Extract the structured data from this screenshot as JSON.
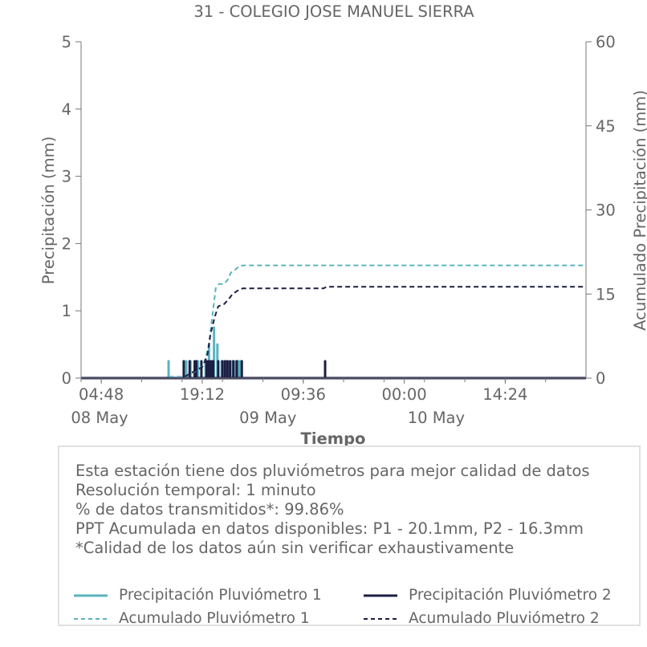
{
  "chart_data": {
    "type": "line",
    "title": "31 - COLEGIO JOSE MANUEL SIERRA",
    "xlabel": "Tiempo",
    "ylabel": "Precipitación (mm)",
    "y2label": "Acumulado Precipitación (mm)",
    "ylim": [
      0,
      5
    ],
    "y2lim": [
      0,
      60
    ],
    "yticks": [
      "0",
      "1",
      "2",
      "3",
      "4",
      "5"
    ],
    "y2ticks": [
      "0",
      "15",
      "30",
      "45",
      "60"
    ],
    "xlim_hours": [
      0,
      60
    ],
    "xticks": [
      {
        "hour": 0,
        "label": ""
      },
      {
        "hour": 2.4,
        "label": "04:48"
      },
      {
        "hour": 7.2,
        "label": ""
      },
      {
        "hour": 12,
        "label": ""
      },
      {
        "hour": 16.8,
        "label": ""
      },
      {
        "hour": 21.6,
        "label": ""
      },
      {
        "hour": 26.4,
        "label": ""
      },
      {
        "hour": 31.2,
        "label": ""
      },
      {
        "hour": 36,
        "label": ""
      },
      {
        "hour": 40.8,
        "label": ""
      },
      {
        "hour": 45.6,
        "label": ""
      },
      {
        "hour": 50.4,
        "label": ""
      },
      {
        "hour": 55.2,
        "label": ""
      }
    ],
    "xtick_labels": [
      {
        "hour": 2.4,
        "label": "04:48"
      },
      {
        "hour": 14.4,
        "label": "19:12"
      },
      {
        "hour": 26.4,
        "label": "09:36"
      },
      {
        "hour": 38.4,
        "label": "00:00"
      },
      {
        "hour": 50.4,
        "label": "14:24"
      }
    ],
    "date_labels": [
      {
        "hour": 2.2,
        "label": "08 May"
      },
      {
        "hour": 22.2,
        "label": "09 May"
      },
      {
        "hour": 42.2,
        "label": "10 May"
      }
    ],
    "series": [
      {
        "name": "Precipitación Pluviómetro 1",
        "axis": "left",
        "color": "#5ab4be",
        "style": "solid",
        "x": [
          10.4,
          12.5,
          13.0,
          13.9,
          14.8,
          15.2,
          15.8,
          16.2,
          16.7,
          17.3,
          18.0,
          18.4,
          18.7,
          18.9
        ],
        "values": [
          0.25,
          0.25,
          0.25,
          0.25,
          0.25,
          0.5,
          0.75,
          0.5,
          0.25,
          0.25,
          0.25,
          0.25,
          0.25,
          0.25
        ]
      },
      {
        "name": "Precipitación Pluviómetro 2",
        "axis": "left",
        "color": "#1c1e44",
        "style": "solid",
        "x": [
          12.2,
          12.9,
          13.5,
          13.7,
          14.3,
          14.9,
          15.1,
          15.3,
          15.5,
          15.7,
          16.3,
          16.8,
          17.1,
          17.4,
          17.7,
          18.1,
          18.5,
          19.1,
          29.0
        ],
        "values": [
          0.25,
          0.25,
          0.25,
          0.25,
          0.25,
          0.25,
          0.25,
          0.25,
          0.25,
          0.25,
          0.25,
          0.25,
          0.25,
          0.25,
          0.25,
          0.25,
          0.25,
          0.25,
          0.25
        ]
      },
      {
        "name": "Acumulado Pluviómetro 1",
        "axis": "right",
        "color": "#5ab4be",
        "style": "dashed",
        "x": [
          0,
          10.3,
          10.5,
          12.4,
          13.0,
          14.0,
          14.6,
          15.2,
          15.6,
          16.0,
          16.4,
          17.0,
          17.4,
          17.8,
          18.3,
          18.8,
          19.4,
          60
        ],
        "values": [
          0,
          0,
          0.25,
          0.25,
          0.8,
          1.5,
          2.5,
          6.0,
          11.0,
          16.0,
          16.8,
          16.8,
          17.5,
          18.8,
          19.3,
          20.0,
          20.1,
          20.1
        ]
      },
      {
        "name": "Acumulado Pluviómetro 2",
        "axis": "right",
        "color": "#1c1e44",
        "style": "dashed",
        "x": [
          0,
          12.0,
          12.6,
          13.2,
          13.8,
          14.4,
          15.0,
          15.4,
          15.9,
          16.3,
          17.0,
          17.5,
          18.0,
          18.6,
          19.2,
          28.8,
          29.2,
          60
        ],
        "values": [
          0,
          0,
          0.5,
          1.0,
          1.5,
          2.0,
          4.0,
          8.0,
          11.0,
          12.8,
          13.2,
          14.0,
          15.0,
          15.6,
          16.0,
          16.0,
          16.3,
          16.3
        ]
      }
    ]
  },
  "info": {
    "lines": [
      "Esta estación tiene dos pluviómetros para mejor calidad de datos",
      "Resolución temporal: 1 minuto",
      "% de datos transmitidos*: 99.86%",
      "PPT Acumulada en datos disponibles: P1 - 20.1mm, P2 - 16.3mm",
      "*Calidad de los datos aún sin verificar exhaustivamente"
    ]
  },
  "legend": [
    {
      "label": "Precipitación Pluviómetro 1",
      "color": "#5ab4be",
      "style": "solid"
    },
    {
      "label": "Precipitación Pluviómetro 2",
      "color": "#1c1e44",
      "style": "solid"
    },
    {
      "label": "Acumulado Pluviómetro 1",
      "color": "#5ab4be",
      "style": "dashed"
    },
    {
      "label": "Acumulado Pluviómetro 2",
      "color": "#1c1e44",
      "style": "dashed"
    }
  ]
}
